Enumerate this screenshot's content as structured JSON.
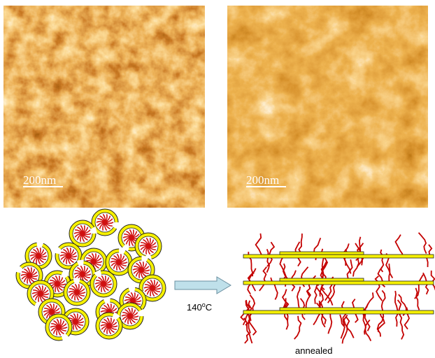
{
  "panels": [
    {
      "scale_bar": "200nm"
    },
    {
      "scale_bar": "200nm"
    }
  ],
  "arrow": {
    "label": "140",
    "sup": "o",
    "unit": "C"
  },
  "caption": "annealed"
}
